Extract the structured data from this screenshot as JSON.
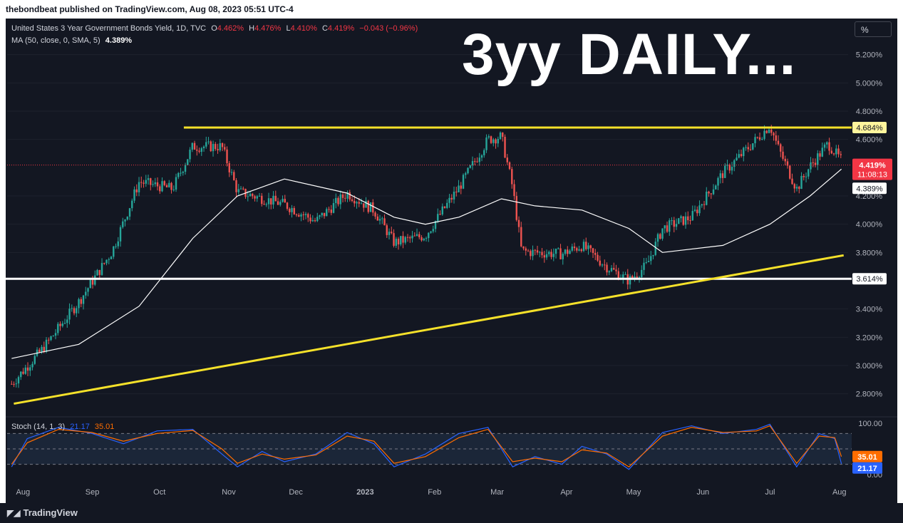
{
  "header": {
    "publisher": "thebondbeat published on TradingView.com, Aug 08, 2023 05:51 UTC-4"
  },
  "legend": {
    "symbol": "United States 3 Year Government Bonds Yield, 1D, TVC",
    "o_label": "O",
    "o_value": "4.462%",
    "h_label": "H",
    "h_value": "4.476%",
    "l_label": "L",
    "l_value": "4.410%",
    "c_label": "C",
    "c_value": "4.419%",
    "change": "−0.043 (−0.96%)",
    "ma_label": "MA (50, close, 0, SMA, 5)",
    "ma_value": "4.389%",
    "stoch_label": "Stoch (14, 1, 3)",
    "stoch_k": "21.17",
    "stoch_d": "35.01"
  },
  "title_overlay": "3yy DAILY...",
  "scale_button": "%",
  "footer": {
    "brand": "TradingView"
  },
  "colors": {
    "background": "#131722",
    "up": "#26a69a",
    "down": "#ef5350",
    "ma": "#ffffff",
    "yellow": "#f5e12a",
    "stoch_k": "#2962ff",
    "stoch_d": "#ff6d00",
    "last_price": "#f23645"
  },
  "chart_data": [
    {
      "type": "candlestick",
      "title": "United States 3 Year Government Bonds Yield, 1D, TVC",
      "x_ticks": [
        "Aug",
        "Sep",
        "Oct",
        "Nov",
        "Dec",
        "2023",
        "Feb",
        "Mar",
        "Apr",
        "May",
        "Jun",
        "Jul",
        "Aug"
      ],
      "y_ticks": [
        "5.200%",
        "5.000%",
        "4.800%",
        "4.600%",
        "4.200%",
        "4.000%",
        "3.800%",
        "3.400%",
        "3.200%",
        "3.000%",
        "2.800%"
      ],
      "ylim": [
        2.7,
        5.33
      ],
      "unit": "%",
      "price_labels": {
        "resistance": "4.684%",
        "last": "4.419%",
        "countdown": "11:08:13",
        "ma": "4.389%",
        "support": "3.614%"
      },
      "horizontal_lines": [
        {
          "value": 4.684,
          "color": "#f5e12a",
          "from_date": "2022-10-17"
        },
        {
          "value": 3.614,
          "color": "#ffffff"
        }
      ],
      "trendline": {
        "start": [
          "2022-08-02",
          2.73
        ],
        "end": [
          "2023-08-08",
          3.78
        ],
        "color": "#f5e12a"
      },
      "series": [
        {
          "name": "Daily close",
          "dates": [
            "2022-08-01",
            "2022-08-15",
            "2022-08-31",
            "2022-09-15",
            "2022-09-27",
            "2022-10-12",
            "2022-10-21",
            "2022-11-03",
            "2022-11-10",
            "2022-12-01",
            "2022-12-15",
            "2022-12-29",
            "2023-01-10",
            "2023-01-19",
            "2023-02-02",
            "2023-02-17",
            "2023-03-02",
            "2023-03-08",
            "2023-03-13",
            "2023-03-17",
            "2023-03-23",
            "2023-04-04",
            "2023-04-13",
            "2023-04-24",
            "2023-05-04",
            "2023-05-12",
            "2023-05-19",
            "2023-06-01",
            "2023-06-15",
            "2023-06-30",
            "2023-07-06",
            "2023-07-10",
            "2023-07-18",
            "2023-07-24",
            "2023-08-01",
            "2023-08-07"
          ],
          "values": [
            2.87,
            3.12,
            3.45,
            3.81,
            4.3,
            4.25,
            4.55,
            4.55,
            4.23,
            4.14,
            4.02,
            4.22,
            4.1,
            3.87,
            3.92,
            4.26,
            4.6,
            4.62,
            4.26,
            3.81,
            3.8,
            3.79,
            3.85,
            3.7,
            3.6,
            3.71,
            3.97,
            4.05,
            4.36,
            4.6,
            4.7,
            4.53,
            4.25,
            4.41,
            4.57,
            4.45
          ]
        },
        {
          "name": "MA (50, close, 0, SMA, 5)",
          "dates": [
            "2022-08-01",
            "2022-08-31",
            "2022-09-27",
            "2022-10-21",
            "2022-11-10",
            "2022-12-01",
            "2022-12-29",
            "2023-01-19",
            "2023-02-02",
            "2023-02-17",
            "2023-03-08",
            "2023-03-23",
            "2023-04-13",
            "2023-05-04",
            "2023-05-19",
            "2023-06-15",
            "2023-07-06",
            "2023-07-24",
            "2023-08-07"
          ],
          "values": [
            3.05,
            3.15,
            3.42,
            3.9,
            4.2,
            4.32,
            4.22,
            4.05,
            4.0,
            4.05,
            4.18,
            4.13,
            4.1,
            3.97,
            3.8,
            3.85,
            4.0,
            4.2,
            4.39
          ]
        }
      ]
    },
    {
      "type": "line",
      "title": "Stoch (14, 1, 3)",
      "ylim": [
        0,
        100
      ],
      "y_ticks": [
        "100.00",
        "0.00"
      ],
      "band": [
        20,
        80
      ],
      "series": [
        {
          "name": "%K",
          "dates": [
            "2022-08-01",
            "2022-08-08",
            "2022-08-22",
            "2022-09-06",
            "2022-09-20",
            "2022-10-05",
            "2022-10-21",
            "2022-11-03",
            "2022-11-10",
            "2022-11-21",
            "2022-12-01",
            "2022-12-15",
            "2022-12-29",
            "2023-01-10",
            "2023-01-19",
            "2023-02-02",
            "2023-02-17",
            "2023-03-02",
            "2023-03-13",
            "2023-03-23",
            "2023-04-04",
            "2023-04-13",
            "2023-04-24",
            "2023-05-04",
            "2023-05-19",
            "2023-06-01",
            "2023-06-15",
            "2023-06-30",
            "2023-07-06",
            "2023-07-18",
            "2023-07-28",
            "2023-08-04",
            "2023-08-07"
          ],
          "values": [
            15,
            70,
            92,
            80,
            60,
            85,
            88,
            40,
            15,
            45,
            25,
            40,
            82,
            60,
            15,
            40,
            80,
            92,
            15,
            35,
            20,
            55,
            40,
            10,
            82,
            95,
            80,
            88,
            98,
            15,
            80,
            70,
            21.17
          ]
        },
        {
          "name": "%D",
          "dates": [
            "2022-08-01",
            "2022-08-08",
            "2022-08-22",
            "2022-09-06",
            "2022-09-20",
            "2022-10-05",
            "2022-10-21",
            "2022-11-03",
            "2022-11-10",
            "2022-11-21",
            "2022-12-01",
            "2022-12-15",
            "2022-12-29",
            "2023-01-10",
            "2023-01-19",
            "2023-02-02",
            "2023-02-17",
            "2023-03-02",
            "2023-03-13",
            "2023-03-23",
            "2023-04-04",
            "2023-04-13",
            "2023-04-24",
            "2023-05-04",
            "2023-05-19",
            "2023-06-01",
            "2023-06-15",
            "2023-06-30",
            "2023-07-06",
            "2023-07-18",
            "2023-07-28",
            "2023-08-04",
            "2023-08-07"
          ],
          "values": [
            20,
            62,
            88,
            82,
            65,
            80,
            86,
            50,
            22,
            40,
            30,
            38,
            75,
            65,
            22,
            35,
            72,
            88,
            25,
            32,
            25,
            48,
            42,
            15,
            75,
            92,
            82,
            85,
            95,
            22,
            75,
            72,
            35.01
          ]
        }
      ]
    }
  ]
}
